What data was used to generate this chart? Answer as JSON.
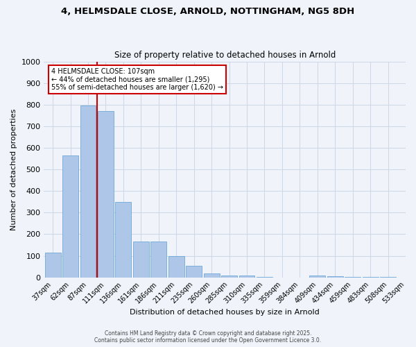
{
  "title_line1": "4, HELMSDALE CLOSE, ARNOLD, NOTTINGHAM, NG5 8DH",
  "title_line2": "Size of property relative to detached houses in Arnold",
  "xlabel": "Distribution of detached houses by size in Arnold",
  "ylabel": "Number of detached properties",
  "bar_values": [
    115,
    565,
    795,
    770,
    350,
    165,
    165,
    97,
    55,
    17,
    10,
    10,
    3,
    0,
    0,
    8,
    5,
    3,
    3,
    3
  ],
  "bar_labels": [
    "37sqm",
    "62sqm",
    "87sqm",
    "111sqm",
    "136sqm",
    "161sqm",
    "186sqm",
    "211sqm",
    "235sqm",
    "260sqm",
    "285sqm",
    "310sqm",
    "335sqm",
    "359sqm",
    "384sqm",
    "409sqm",
    "434sqm",
    "459sqm",
    "483sqm",
    "508sqm",
    "533sqm"
  ],
  "bar_color": "#aec6e8",
  "bar_edgecolor": "#5a9fd4",
  "grid_color": "#d0d8e8",
  "background_color": "#f0f4fa",
  "vline_x": 2.5,
  "vline_color": "#cc0000",
  "annotation_text": "4 HELMSDALE CLOSE: 107sqm\n← 44% of detached houses are smaller (1,295)\n55% of semi-detached houses are larger (1,620) →",
  "annotation_box_color": "#ffffff",
  "annotation_box_edgecolor": "#cc0000",
  "ylim": [
    0,
    1000
  ],
  "yticks": [
    0,
    100,
    200,
    300,
    400,
    500,
    600,
    700,
    800,
    900,
    1000
  ],
  "footer_line1": "Contains HM Land Registry data © Crown copyright and database right 2025.",
  "footer_line2": "Contains public sector information licensed under the Open Government Licence 3.0."
}
